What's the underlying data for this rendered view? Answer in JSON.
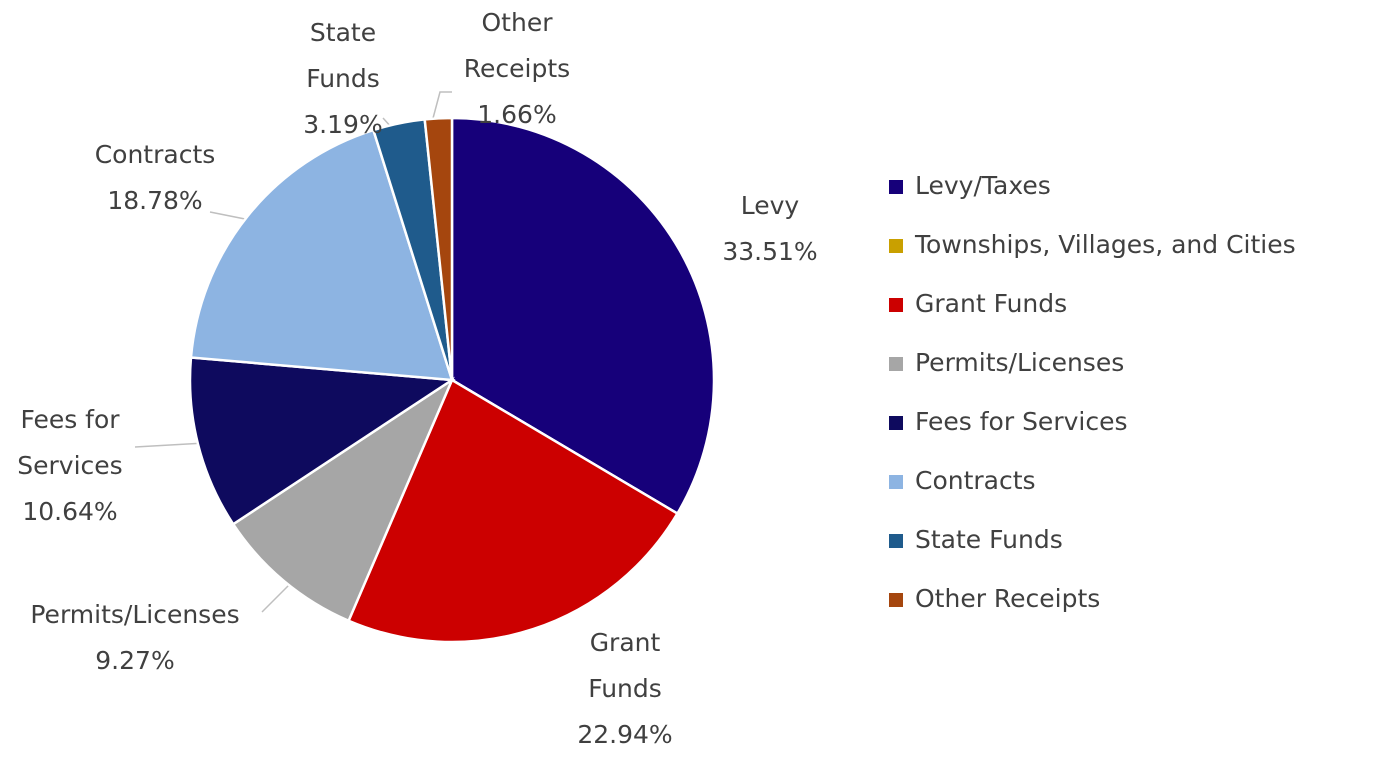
{
  "chart_data": {
    "type": "pie",
    "categories": [
      "Levy/Taxes",
      "Townships, Villages, and Cities",
      "Grant Funds",
      "Permits/Licenses",
      "Fees for Services",
      "Contracts",
      "State Funds",
      "Other Receipts"
    ],
    "slice_labels": [
      "Levy",
      null,
      "Grant Funds",
      "Permits/Licenses",
      "Fees for Services",
      "Contracts",
      "State Funds",
      "Other Receipts"
    ],
    "values": [
      33.51,
      0,
      22.94,
      9.27,
      10.64,
      18.78,
      3.19,
      1.66
    ],
    "value_labels": [
      "33.51%",
      null,
      "22.94%",
      "9.27%",
      "10.64%",
      "18.78%",
      "3.19%",
      "1.66%"
    ],
    "colors": [
      "#16007a",
      "#c9a000",
      "#cc0000",
      "#a6a6a6",
      "#0e0a5e",
      "#8db4e2",
      "#1f5b8c",
      "#a5460e"
    ],
    "legend": "right"
  }
}
